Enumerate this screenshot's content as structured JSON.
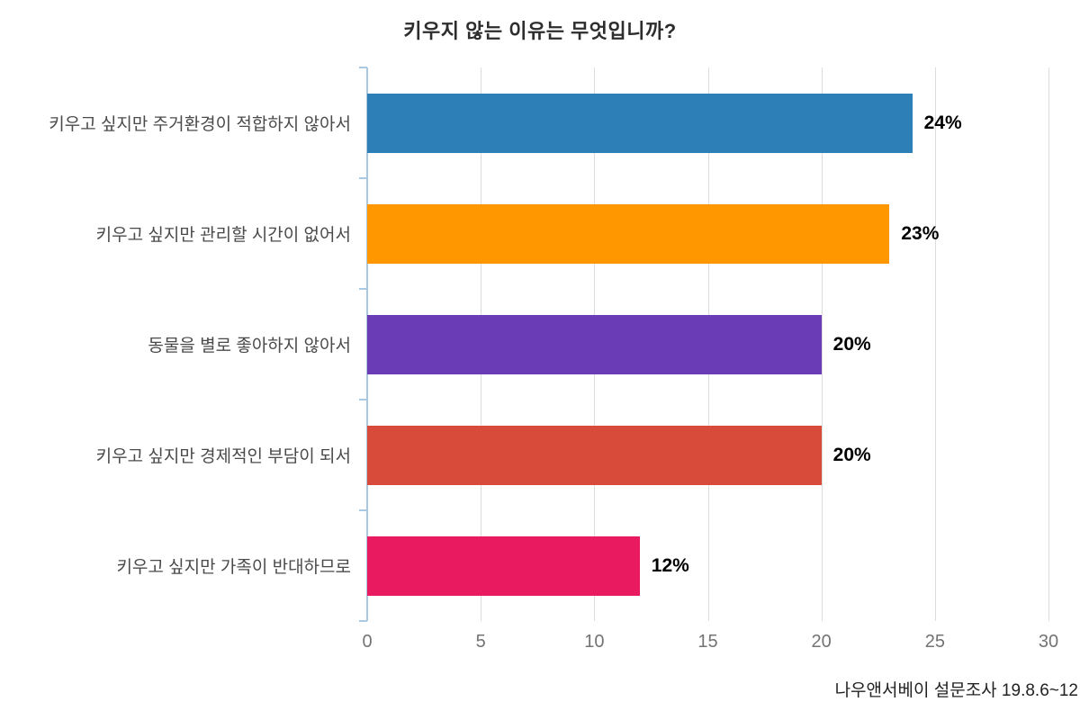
{
  "title": "키우지 않는 이유는 무엇입니까?",
  "footer": "나우앤서베이 설문조사 19.8.6~12",
  "chart_data": {
    "type": "bar",
    "orientation": "horizontal",
    "title": "키우지 않는 이유는 무엇입니까?",
    "categories": [
      "키우고 싶지만 주거환경이 적합하지 않아서",
      "키우고 싶지만 관리할 시간이 없어서",
      "동물을 별로 좋아하지 않아서",
      "키우고 싶지만 경제적인 부담이 되서",
      "키우고 싶지만 가족이 반대하므로"
    ],
    "values": [
      24,
      23,
      20,
      20,
      12
    ],
    "value_labels": [
      "24%",
      "23%",
      "20%",
      "20%",
      "12%"
    ],
    "colors": [
      "#2d7fb8",
      "#ff9800",
      "#6a3cb5",
      "#d84a3a",
      "#ea1a60"
    ],
    "xlim": [
      0,
      30
    ],
    "xticks": [
      0,
      5,
      10,
      15,
      20,
      25,
      30
    ],
    "grid": true,
    "legend": "none",
    "source_caption": "나우앤서베이 설문조사 19.8.6~12"
  }
}
